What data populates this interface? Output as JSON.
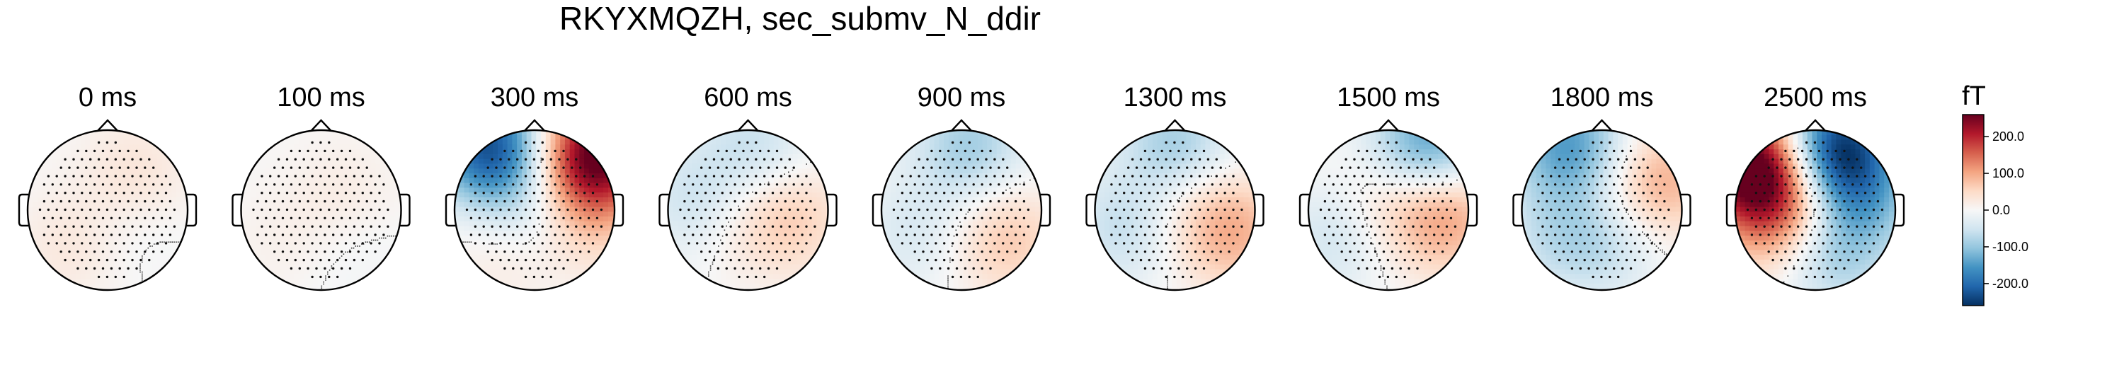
{
  "chart_data": {
    "type": "heatmap",
    "title": "RKYXMQZH, sec_submv_N_ddir",
    "panels": [
      {
        "label": "0 ms",
        "sources": [
          [
            -0.45,
            0.45,
            30
          ],
          [
            0.35,
            -0.45,
            35
          ],
          [
            0.2,
            0.2,
            -15
          ]
        ]
      },
      {
        "label": "100 ms",
        "sources": [
          [
            0.3,
            -0.2,
            20
          ],
          [
            -0.5,
            0.4,
            12
          ],
          [
            0.4,
            0.5,
            -10
          ]
        ]
      },
      {
        "label": "300 ms",
        "sources": [
          [
            -0.55,
            -0.78,
            -230
          ],
          [
            0.75,
            -0.7,
            270
          ],
          [
            0.6,
            0.1,
            70
          ],
          [
            0.05,
            0.1,
            -70
          ],
          [
            -0.3,
            0.45,
            40
          ]
        ]
      },
      {
        "label": "600 ms",
        "sources": [
          [
            -0.6,
            -0.1,
            -70
          ],
          [
            0.55,
            0.1,
            60
          ],
          [
            -0.2,
            0.05,
            40
          ],
          [
            0.1,
            -0.8,
            -60
          ]
        ]
      },
      {
        "label": "900 ms",
        "sources": [
          [
            0.1,
            -0.8,
            -90
          ],
          [
            0.55,
            0.35,
            70
          ],
          [
            -0.6,
            0.3,
            -40
          ]
        ]
      },
      {
        "label": "1300 ms",
        "sources": [
          [
            0.0,
            -0.8,
            -95
          ],
          [
            0.7,
            0.25,
            95
          ],
          [
            -0.6,
            0.2,
            -70
          ],
          [
            -0.05,
            -0.1,
            35
          ]
        ]
      },
      {
        "label": "1500 ms",
        "sources": [
          [
            0.5,
            -0.82,
            -150
          ],
          [
            0.7,
            0.05,
            110
          ],
          [
            -0.6,
            0.3,
            -60
          ],
          [
            -0.1,
            -0.05,
            45
          ]
        ]
      },
      {
        "label": "1800 ms",
        "sources": [
          [
            -0.4,
            -0.8,
            -150
          ],
          [
            0.75,
            -0.35,
            90
          ],
          [
            0.05,
            0.35,
            -70
          ],
          [
            -0.6,
            0.3,
            -50
          ],
          [
            0.1,
            -0.1,
            30
          ]
        ]
      },
      {
        "label": "2500 ms",
        "sources": [
          [
            -0.78,
            -0.55,
            280
          ],
          [
            0.25,
            -0.75,
            -260
          ],
          [
            -0.3,
            -0.05,
            110
          ],
          [
            0.6,
            -0.1,
            -90
          ],
          [
            0.15,
            0.55,
            -90
          ],
          [
            -0.6,
            0.35,
            40
          ]
        ]
      }
    ],
    "colorbar": {
      "unit": "fT",
      "range": [
        -260,
        260
      ],
      "ticks": [
        200.0,
        100.0,
        0.0,
        -100.0,
        -200.0
      ],
      "tick_labels": [
        "200.0",
        "100.0",
        "0.0",
        "-100.0",
        "-200.0"
      ],
      "cmap": "RdBu_r",
      "colors": [
        "#053061",
        "#2166ac",
        "#4393c3",
        "#92c5de",
        "#d1e5f0",
        "#f7f7f7",
        "#fddbc7",
        "#f4a582",
        "#d6604d",
        "#b2182b",
        "#67001f"
      ]
    }
  }
}
